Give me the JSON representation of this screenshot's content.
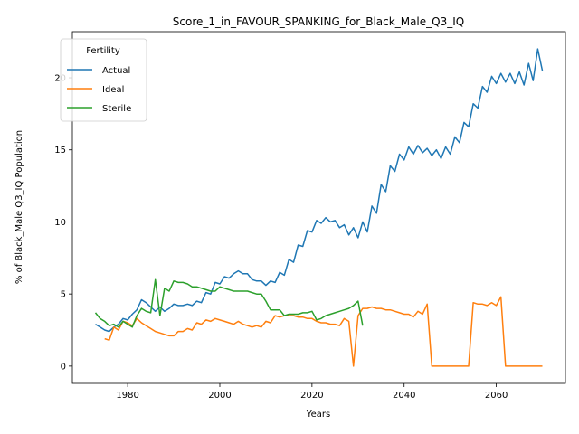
{
  "chart_data": {
    "type": "line",
    "title": "Score_1_in_FAVOUR_SPANKING_for_Black_Male_Q3_IQ",
    "xlabel": "Years",
    "ylabel": "% of Black_Male Q3_IQ Population",
    "xlim": [
      1968,
      2075
    ],
    "ylim": [
      -1.2,
      23.2
    ],
    "xticks": [
      1980,
      2000,
      2020,
      2040,
      2060
    ],
    "yticks": [
      0,
      5,
      10,
      15,
      20
    ],
    "grid": false,
    "legend": {
      "title": "Fertility",
      "placement": "top-left"
    },
    "series": [
      {
        "name": "Actual",
        "color": "#1f77b4",
        "x": [
          1973,
          1974,
          1975,
          1976,
          1977,
          1978,
          1979,
          1980,
          1981,
          1982,
          1983,
          1984,
          1985,
          1986,
          1987,
          1988,
          1989,
          1990,
          1991,
          1992,
          1993,
          1994,
          1995,
          1996,
          1997,
          1998,
          1999,
          2000,
          2001,
          2002,
          2003,
          2004,
          2005,
          2006,
          2007,
          2008,
          2009,
          2010,
          2011,
          2012,
          2013,
          2014,
          2015,
          2016,
          2017,
          2018,
          2019,
          2020,
          2021,
          2022,
          2023,
          2024,
          2025,
          2026,
          2027,
          2028,
          2029,
          2030,
          2031,
          2032,
          2033,
          2034,
          2035,
          2036,
          2037,
          2038,
          2039,
          2040,
          2041,
          2042,
          2043,
          2044,
          2045,
          2046,
          2047,
          2048,
          2049,
          2050,
          2051,
          2052,
          2053,
          2054,
          2055,
          2056,
          2057,
          2058,
          2059,
          2060,
          2061,
          2062,
          2063,
          2064,
          2065,
          2066,
          2067,
          2068,
          2069,
          2070
        ],
        "y": [
          2.9,
          2.7,
          2.5,
          2.4,
          2.7,
          2.9,
          3.3,
          3.2,
          3.6,
          3.9,
          4.6,
          4.4,
          4.1,
          3.8,
          4.1,
          3.8,
          4.0,
          4.3,
          4.2,
          4.2,
          4.3,
          4.2,
          4.5,
          4.4,
          5.1,
          5.0,
          5.8,
          5.7,
          6.2,
          6.1,
          6.4,
          6.6,
          6.4,
          6.4,
          6.0,
          5.9,
          5.9,
          5.6,
          5.9,
          5.8,
          6.5,
          6.3,
          7.4,
          7.2,
          8.4,
          8.3,
          9.4,
          9.3,
          10.1,
          9.9,
          10.3,
          10.0,
          10.1,
          9.6,
          9.8,
          9.1,
          9.6,
          8.9,
          10.0,
          9.3,
          11.1,
          10.6,
          12.6,
          12.1,
          13.9,
          13.5,
          14.7,
          14.3,
          15.2,
          14.7,
          15.3,
          14.8,
          15.1,
          14.6,
          15.0,
          14.4,
          15.2,
          14.7,
          15.9,
          15.5,
          16.9,
          16.6,
          18.2,
          17.9,
          19.4,
          19.0,
          20.1,
          19.6,
          20.3,
          19.7,
          20.3,
          19.6,
          20.4,
          19.5,
          21.0,
          19.8,
          22.0,
          20.5
        ]
      },
      {
        "name": "Ideal",
        "color": "#ff7f0e",
        "x": [
          1975,
          1976,
          1977,
          1978,
          1979,
          1980,
          1981,
          1982,
          1983,
          1984,
          1985,
          1986,
          1987,
          1988,
          1989,
          1990,
          1991,
          1992,
          1993,
          1994,
          1995,
          1996,
          1997,
          1998,
          1999,
          2000,
          2001,
          2002,
          2003,
          2004,
          2005,
          2006,
          2007,
          2008,
          2009,
          2010,
          2011,
          2012,
          2013,
          2014,
          2015,
          2016,
          2017,
          2018,
          2019,
          2020,
          2021,
          2022,
          2023,
          2024,
          2025,
          2026,
          2027,
          2028,
          2029,
          2030,
          2031,
          2032,
          2033,
          2034,
          2035,
          2036,
          2037,
          2038,
          2039,
          2040,
          2041,
          2042,
          2043,
          2044,
          2045,
          2046,
          2047,
          2048,
          2049,
          2050,
          2051,
          2052,
          2053,
          2054,
          2055,
          2056,
          2057,
          2058,
          2059,
          2060,
          2061,
          2062,
          2063,
          2064,
          2065,
          2066,
          2067,
          2068,
          2069,
          2070
        ],
        "y": [
          1.9,
          1.8,
          2.7,
          2.5,
          3.1,
          3.0,
          2.8,
          3.3,
          3.0,
          2.8,
          2.6,
          2.4,
          2.3,
          2.2,
          2.1,
          2.1,
          2.4,
          2.4,
          2.6,
          2.5,
          3.0,
          2.9,
          3.2,
          3.1,
          3.3,
          3.2,
          3.1,
          3.0,
          2.9,
          3.1,
          2.9,
          2.8,
          2.7,
          2.8,
          2.7,
          3.1,
          3.0,
          3.5,
          3.4,
          3.5,
          3.5,
          3.5,
          3.4,
          3.4,
          3.3,
          3.3,
          3.1,
          3.0,
          3.0,
          2.9,
          2.9,
          2.8,
          3.3,
          3.1,
          0.0,
          3.5,
          4.0,
          4.0,
          4.1,
          4.0,
          4.0,
          3.9,
          3.9,
          3.8,
          3.7,
          3.6,
          3.6,
          3.4,
          3.8,
          3.6,
          4.3,
          0.0,
          0.0,
          0.0,
          0.0,
          0.0,
          0.0,
          0.0,
          0.0,
          0.0,
          4.4,
          4.3,
          4.3,
          4.2,
          4.4,
          4.2,
          4.8,
          0.0,
          0.0,
          0.0,
          0.0,
          0.0,
          0.0,
          0.0,
          0.0,
          0.0
        ]
      },
      {
        "name": "Sterile",
        "color": "#2ca02c",
        "x": [
          1973,
          1974,
          1975,
          1976,
          1977,
          1978,
          1979,
          1980,
          1981,
          1982,
          1983,
          1984,
          1985,
          1986,
          1987,
          1988,
          1989,
          1990,
          1991,
          1992,
          1993,
          1994,
          1995,
          1996,
          1997,
          1998,
          1999,
          2000,
          2001,
          2002,
          2003,
          2004,
          2005,
          2006,
          2007,
          2008,
          2009,
          2010,
          2011,
          2012,
          2013,
          2014,
          2015,
          2016,
          2017,
          2018,
          2019,
          2020,
          2021,
          2022,
          2023,
          2024,
          2025,
          2026,
          2027,
          2028,
          2029,
          2030,
          2031
        ],
        "y": [
          3.7,
          3.3,
          3.1,
          2.8,
          2.9,
          2.7,
          3.1,
          2.9,
          2.7,
          3.5,
          4.0,
          3.8,
          3.7,
          6.0,
          3.5,
          5.4,
          5.2,
          5.9,
          5.8,
          5.8,
          5.7,
          5.5,
          5.5,
          5.4,
          5.3,
          5.2,
          5.2,
          5.5,
          5.4,
          5.3,
          5.2,
          5.2,
          5.2,
          5.2,
          5.1,
          5.0,
          5.0,
          4.5,
          3.9,
          3.9,
          3.9,
          3.5,
          3.6,
          3.6,
          3.6,
          3.7,
          3.7,
          3.8,
          3.2,
          3.3,
          3.5,
          3.6,
          3.7,
          3.8,
          3.9,
          4.0,
          4.2,
          4.5,
          2.8
        ]
      }
    ]
  }
}
